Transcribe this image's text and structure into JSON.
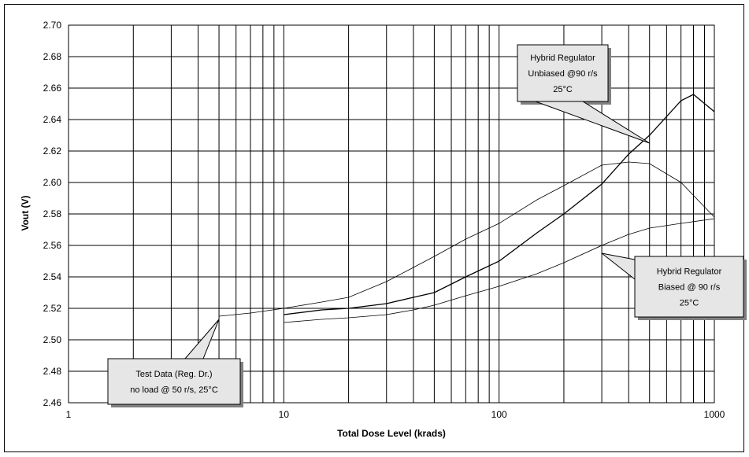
{
  "chart_data": {
    "type": "line",
    "xlabel": "Total Dose Level (krads)",
    "ylabel": "Vout (V)",
    "x_scale": "log",
    "xlim": [
      1,
      1000
    ],
    "ylim": [
      2.46,
      2.7
    ],
    "grid": true,
    "x_tick_labels": [
      "1",
      "10",
      "100",
      "1000"
    ],
    "y_tick_labels": [
      "2.46",
      "2.48",
      "2.50",
      "2.52",
      "2.54",
      "2.56",
      "2.58",
      "2.60",
      "2.62",
      "2.64",
      "2.66",
      "2.68",
      "2.70"
    ],
    "series": [
      {
        "x": [
          5,
          7,
          10,
          15,
          20,
          30,
          40,
          50,
          70,
          100,
          150,
          200,
          300,
          400,
          500,
          700,
          1000
        ],
        "y": [
          2.515,
          2.517,
          2.52,
          2.524,
          2.527,
          2.537,
          2.546,
          2.553,
          2.564,
          2.574,
          2.589,
          2.598,
          2.611,
          2.613,
          2.612,
          2.6,
          2.578
        ]
      },
      {
        "x": [
          10,
          15,
          20,
          30,
          40,
          50,
          70,
          100,
          150,
          200,
          300,
          400,
          500,
          700,
          800,
          1000
        ],
        "y": [
          2.516,
          2.519,
          2.52,
          2.523,
          2.527,
          2.53,
          2.54,
          2.55,
          2.568,
          2.58,
          2.599,
          2.618,
          2.63,
          2.652,
          2.656,
          2.645
        ]
      },
      {
        "x": [
          10,
          15,
          20,
          30,
          40,
          50,
          70,
          100,
          150,
          200,
          300,
          400,
          500,
          700,
          1000
        ],
        "y": [
          2.511,
          2.513,
          2.514,
          2.516,
          2.519,
          2.522,
          2.528,
          2.534,
          2.542,
          2.549,
          2.56,
          2.567,
          2.571,
          2.574,
          2.577
        ]
      }
    ],
    "annotations": [
      {
        "lines": [
          "Hybrid Regulator",
          "Unbiased @90 r/s",
          "25°C"
        ],
        "points_to": {
          "x": 500,
          "y": 2.625
        }
      },
      {
        "lines": [
          "Hybrid Regulator",
          "Biased @ 90 r/s",
          "25°C"
        ],
        "points_to": {
          "x": 300,
          "y": 2.555
        }
      },
      {
        "lines": [
          "Test Data (Reg. Dr.)",
          "no load @ 50 r/s, 25°C"
        ],
        "points_to": {
          "x": 5,
          "y": 2.513
        }
      }
    ]
  }
}
